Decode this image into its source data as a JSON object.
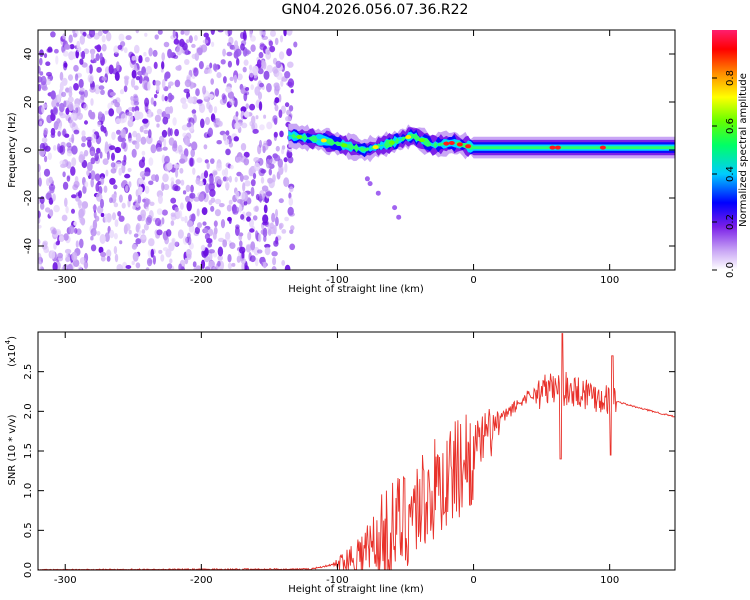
{
  "title": "GN04.2026.056.07.36.R22",
  "chart_data": [
    {
      "type": "heatmap",
      "xlabel": "Height of straight line (km)",
      "ylabel": "Frequency (Hz)",
      "xlim": [
        -320,
        148
      ],
      "ylim": [
        -50,
        50
      ],
      "xticks": [
        -300,
        -200,
        -100,
        0,
        100
      ],
      "yticks": [
        -40,
        -20,
        0,
        20,
        40
      ],
      "colorbar": {
        "label": "Normalized spectral amplitude",
        "range": [
          0.0,
          1.0
        ],
        "ticks": [
          "0.0",
          "0.2",
          "0.4",
          "0.6",
          "0.8"
        ],
        "colors": [
          "#ffffff",
          "#8a2be2",
          "#0000ff",
          "#00ffff",
          "#00ff00",
          "#ffff00",
          "#ff8c00",
          "#ff0000",
          "#ff1493"
        ]
      },
      "band_center": [
        {
          "x": -135,
          "y": 6
        },
        {
          "x": -110,
          "y": 4
        },
        {
          "x": -80,
          "y": 0
        },
        {
          "x": -60,
          "y": 3
        },
        {
          "x": -45,
          "y": 6
        },
        {
          "x": -30,
          "y": 2
        },
        {
          "x": -15,
          "y": 3
        },
        {
          "x": 0,
          "y": 1
        },
        {
          "x": 50,
          "y": 1
        },
        {
          "x": 100,
          "y": 1
        },
        {
          "x": 148,
          "y": 1
        }
      ]
    },
    {
      "type": "line",
      "xlabel": "Height of straight line (km)",
      "ylabel": "SNR (10 * v/v)",
      "yscale_label": "(x10",
      "yscale_exp": "4",
      "xlim": [
        -320,
        148
      ],
      "ylim": [
        0,
        3.0
      ],
      "xticks": [
        -300,
        -200,
        -100,
        0,
        100
      ],
      "yticks": [
        "0.0",
        "0.5",
        "1.0",
        "1.5",
        "2.0",
        "2.5"
      ],
      "series_color": "#e8312a",
      "envelope": [
        {
          "x": -320,
          "y": 0.0
        },
        {
          "x": -120,
          "y": 0.01
        },
        {
          "x": -100,
          "y": 0.08
        },
        {
          "x": -80,
          "y": 0.25
        },
        {
          "x": -60,
          "y": 0.55
        },
        {
          "x": -40,
          "y": 0.9
        },
        {
          "x": -20,
          "y": 1.2
        },
        {
          "x": 0,
          "y": 1.55
        },
        {
          "x": 20,
          "y": 1.9
        },
        {
          "x": 40,
          "y": 2.2
        },
        {
          "x": 60,
          "y": 2.3
        },
        {
          "x": 80,
          "y": 2.25
        },
        {
          "x": 100,
          "y": 2.15
        },
        {
          "x": 120,
          "y": 2.05
        },
        {
          "x": 148,
          "y": 1.93
        }
      ]
    }
  ]
}
